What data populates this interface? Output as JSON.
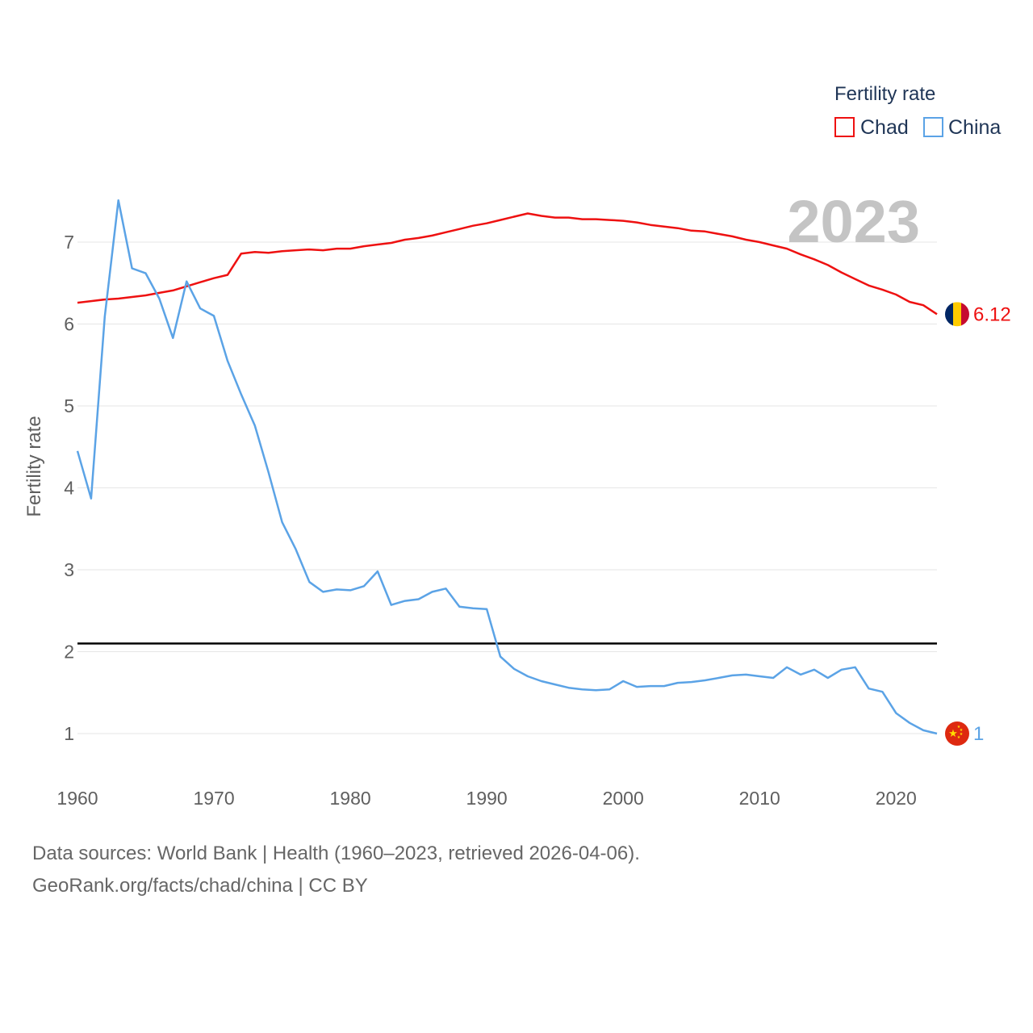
{
  "colors": {
    "chad": "#ee1111",
    "china": "#5ba3e6",
    "reference": "#000000",
    "grid": "#e6e6e6"
  },
  "chart_data": {
    "type": "line",
    "title": "",
    "xlabel": "",
    "ylabel": "Fertility rate",
    "xlim": [
      1960,
      2023
    ],
    "ylim": [
      0.4,
      7.7
    ],
    "x_ticks": [
      1960,
      1970,
      1980,
      1990,
      2000,
      2010,
      2020
    ],
    "x_tick_labels": [
      "1960",
      "1970",
      "1980",
      "1990",
      "2000",
      "2010",
      "2020"
    ],
    "y_ticks": [
      1,
      2,
      3,
      4,
      5,
      6,
      7
    ],
    "y_tick_labels": [
      "1",
      "2",
      "3",
      "4",
      "5",
      "6",
      "7"
    ],
    "grid": true,
    "legend": {
      "title": "Fertility rate",
      "position": "top-right",
      "entries": [
        "Chad",
        "China"
      ]
    },
    "year_label": "2023",
    "reference_line": {
      "y": 2.1
    },
    "x": [
      1960,
      1961,
      1962,
      1963,
      1964,
      1965,
      1966,
      1967,
      1968,
      1969,
      1970,
      1971,
      1972,
      1973,
      1974,
      1975,
      1976,
      1977,
      1978,
      1979,
      1980,
      1981,
      1982,
      1983,
      1984,
      1985,
      1986,
      1987,
      1988,
      1989,
      1990,
      1991,
      1992,
      1993,
      1994,
      1995,
      1996,
      1997,
      1998,
      1999,
      2000,
      2001,
      2002,
      2003,
      2004,
      2005,
      2006,
      2007,
      2008,
      2009,
      2010,
      2011,
      2012,
      2013,
      2014,
      2015,
      2016,
      2017,
      2018,
      2019,
      2020,
      2021,
      2022,
      2023
    ],
    "series": [
      {
        "name": "Chad",
        "color": "#ee1111",
        "end_label": "6.12",
        "values": [
          6.26,
          6.28,
          6.3,
          6.31,
          6.33,
          6.35,
          6.38,
          6.41,
          6.46,
          6.51,
          6.56,
          6.6,
          6.86,
          6.88,
          6.87,
          6.89,
          6.9,
          6.91,
          6.9,
          6.92,
          6.92,
          6.95,
          6.97,
          6.99,
          7.03,
          7.05,
          7.08,
          7.12,
          7.16,
          7.2,
          7.23,
          7.27,
          7.31,
          7.35,
          7.32,
          7.3,
          7.3,
          7.28,
          7.28,
          7.27,
          7.26,
          7.24,
          7.21,
          7.19,
          7.17,
          7.14,
          7.13,
          7.1,
          7.07,
          7.03,
          7.0,
          6.96,
          6.92,
          6.85,
          6.79,
          6.72,
          6.63,
          6.55,
          6.47,
          6.42,
          6.36,
          6.27,
          6.23,
          6.12
        ]
      },
      {
        "name": "China",
        "color": "#5ba3e6",
        "end_label": "1",
        "values": [
          4.45,
          3.87,
          6.09,
          7.51,
          6.68,
          6.62,
          6.31,
          5.83,
          6.52,
          6.19,
          6.1,
          5.55,
          5.14,
          4.76,
          4.19,
          3.58,
          3.25,
          2.85,
          2.73,
          2.76,
          2.75,
          2.8,
          2.98,
          2.57,
          2.62,
          2.64,
          2.73,
          2.77,
          2.55,
          2.53,
          2.52,
          1.94,
          1.79,
          1.7,
          1.64,
          1.6,
          1.56,
          1.54,
          1.53,
          1.54,
          1.64,
          1.57,
          1.58,
          1.58,
          1.62,
          1.63,
          1.65,
          1.68,
          1.71,
          1.72,
          1.7,
          1.68,
          1.81,
          1.72,
          1.78,
          1.68,
          1.78,
          1.81,
          1.55,
          1.51,
          1.25,
          1.13,
          1.04,
          1.0
        ]
      }
    ]
  },
  "footer": {
    "sources": "Data sources: World Bank | Health (1960–2023, retrieved 2026-04-06).",
    "link": "GeoRank.org/facts/chad/china | CC BY"
  }
}
